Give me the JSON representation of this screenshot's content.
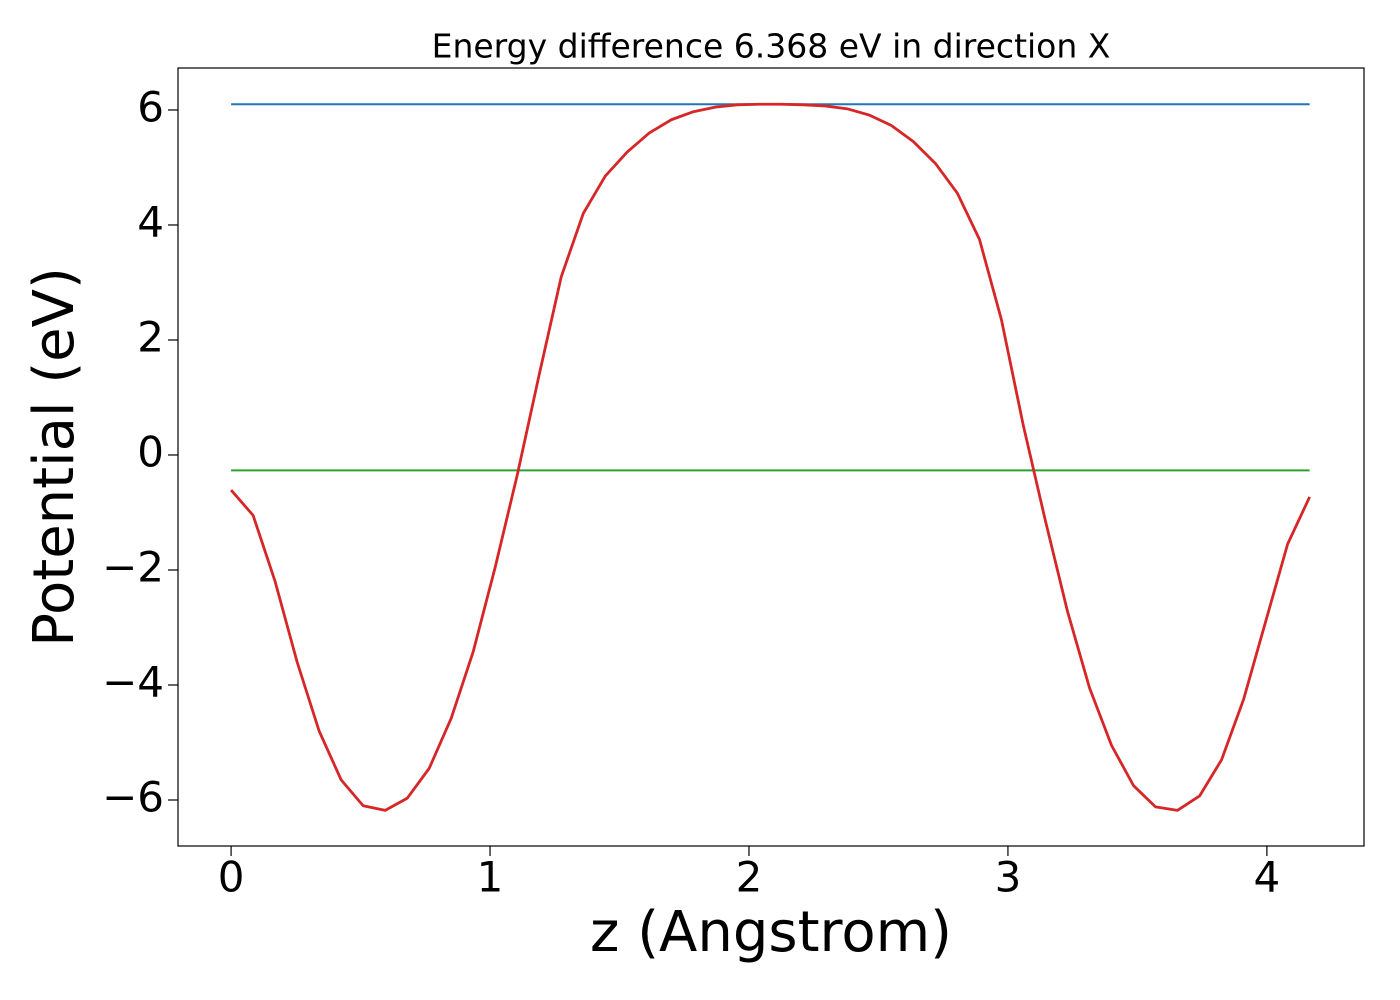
{
  "chart_data": {
    "type": "line",
    "title": "Energy difference 6.368 eV in direction X",
    "xlabel": "z (Angstrom)",
    "ylabel": "Potential (eV)",
    "xlim": [
      -0.205,
      4.375
    ],
    "ylim": [
      -6.8,
      6.73
    ],
    "xticks": [
      0,
      1,
      2,
      3,
      4
    ],
    "yticks": [
      {
        "value": -6,
        "label": "−6"
      },
      {
        "value": -4,
        "label": "−4"
      },
      {
        "value": -2,
        "label": "−2"
      },
      0,
      2,
      4,
      6
    ],
    "series": [
      {
        "color": "#1f77b4",
        "x": [
          0,
          4.165
        ],
        "values": [
          6.1,
          6.1
        ]
      },
      {
        "color": "#2ca02c",
        "x": [
          0,
          4.165
        ],
        "values": [
          -0.268,
          -0.268
        ]
      },
      {
        "color": "#d62728",
        "x": [
          0,
          0.085,
          0.17,
          0.255,
          0.34,
          0.425,
          0.51,
          0.595,
          0.68,
          0.765,
          0.85,
          0.935,
          1.02,
          1.105,
          1.19,
          1.275,
          1.36,
          1.445,
          1.53,
          1.615,
          1.7,
          1.785,
          1.87,
          1.955,
          2.04,
          2.125,
          2.21,
          2.295,
          2.38,
          2.465,
          2.55,
          2.635,
          2.72,
          2.805,
          2.89,
          2.975,
          3.06,
          3.145,
          3.23,
          3.315,
          3.4,
          3.485,
          3.57,
          3.655,
          3.74,
          3.825,
          3.91,
          3.995,
          4.08,
          4.165
        ],
        "values": [
          -0.61,
          -1.05,
          -2.2,
          -3.6,
          -4.8,
          -5.65,
          -6.1,
          -6.18,
          -5.97,
          -5.45,
          -4.58,
          -3.42,
          -1.95,
          -0.35,
          1.4,
          3.1,
          4.2,
          4.85,
          5.27,
          5.6,
          5.83,
          5.97,
          6.05,
          6.09,
          6.1,
          6.1,
          6.09,
          6.07,
          6.02,
          5.91,
          5.73,
          5.45,
          5.07,
          4.55,
          3.75,
          2.35,
          0.5,
          -1.15,
          -2.72,
          -4.05,
          -5.05,
          -5.75,
          -6.12,
          -6.18,
          -5.93,
          -5.3,
          -4.25,
          -2.9,
          -1.55,
          -0.73
        ]
      }
    ]
  }
}
